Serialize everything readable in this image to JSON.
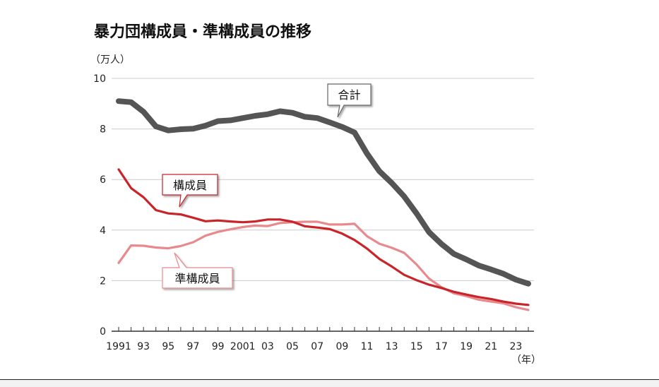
{
  "chart_data": {
    "type": "line",
    "title": "暴力団構成員・準構成員の推移",
    "ylabel": "（万人）",
    "xlabel": "（年）",
    "ylim": [
      0,
      10
    ],
    "yticks": [
      0,
      2,
      4,
      6,
      8,
      10
    ],
    "xlim": [
      1991,
      2024
    ],
    "xtick_labels": [
      {
        "year": 1991,
        "label": "1991"
      },
      {
        "year": 1993,
        "label": "93"
      },
      {
        "year": 1995,
        "label": "95"
      },
      {
        "year": 1997,
        "label": "97"
      },
      {
        "year": 1999,
        "label": "99"
      },
      {
        "year": 2001,
        "label": "2001"
      },
      {
        "year": 2003,
        "label": "03"
      },
      {
        "year": 2005,
        "label": "05"
      },
      {
        "year": 2007,
        "label": "07"
      },
      {
        "year": 2009,
        "label": "09"
      },
      {
        "year": 2011,
        "label": "11"
      },
      {
        "year": 2013,
        "label": "13"
      },
      {
        "year": 2015,
        "label": "15"
      },
      {
        "year": 2017,
        "label": "17"
      },
      {
        "year": 2019,
        "label": "19"
      },
      {
        "year": 2021,
        "label": "21"
      },
      {
        "year": 2023,
        "label": "23"
      }
    ],
    "x": [
      1991,
      1992,
      1993,
      1994,
      1995,
      1996,
      1997,
      1998,
      1999,
      2000,
      2001,
      2002,
      2003,
      2004,
      2005,
      2006,
      2007,
      2008,
      2009,
      2010,
      2011,
      2012,
      2013,
      2014,
      2015,
      2016,
      2017,
      2018,
      2019,
      2020,
      2021,
      2022,
      2023,
      2024
    ],
    "series": [
      {
        "name": "合計",
        "color": "#555555",
        "values": [
          9.1,
          9.06,
          8.68,
          8.1,
          7.94,
          7.99,
          8.01,
          8.13,
          8.31,
          8.34,
          8.43,
          8.52,
          8.58,
          8.7,
          8.64,
          8.48,
          8.43,
          8.26,
          8.08,
          7.86,
          7.03,
          6.33,
          5.86,
          5.33,
          4.66,
          3.92,
          3.45,
          3.06,
          2.84,
          2.6,
          2.44,
          2.27,
          2.04,
          1.88
        ]
      },
      {
        "name": "構成員",
        "color": "#c8242a",
        "values": [
          6.4,
          5.66,
          5.3,
          4.79,
          4.66,
          4.62,
          4.49,
          4.35,
          4.38,
          4.34,
          4.31,
          4.34,
          4.42,
          4.42,
          4.33,
          4.15,
          4.1,
          4.04,
          3.86,
          3.61,
          3.27,
          2.86,
          2.56,
          2.23,
          2.02,
          1.84,
          1.71,
          1.56,
          1.45,
          1.35,
          1.27,
          1.17,
          1.09,
          1.04
        ]
      },
      {
        "name": "準構成員",
        "color": "#e8898d",
        "values": [
          2.7,
          3.39,
          3.38,
          3.31,
          3.28,
          3.37,
          3.52,
          3.78,
          3.93,
          4.03,
          4.12,
          4.18,
          4.16,
          4.28,
          4.31,
          4.33,
          4.33,
          4.22,
          4.22,
          4.25,
          3.76,
          3.46,
          3.3,
          3.1,
          2.64,
          2.08,
          1.74,
          1.5,
          1.39,
          1.25,
          1.17,
          1.1,
          0.95,
          0.84
        ]
      }
    ],
    "callouts": [
      {
        "series": "合計",
        "text": "合計"
      },
      {
        "series": "構成員",
        "text": "構成員"
      },
      {
        "series": "準構成員",
        "text": "準構成員"
      }
    ]
  }
}
